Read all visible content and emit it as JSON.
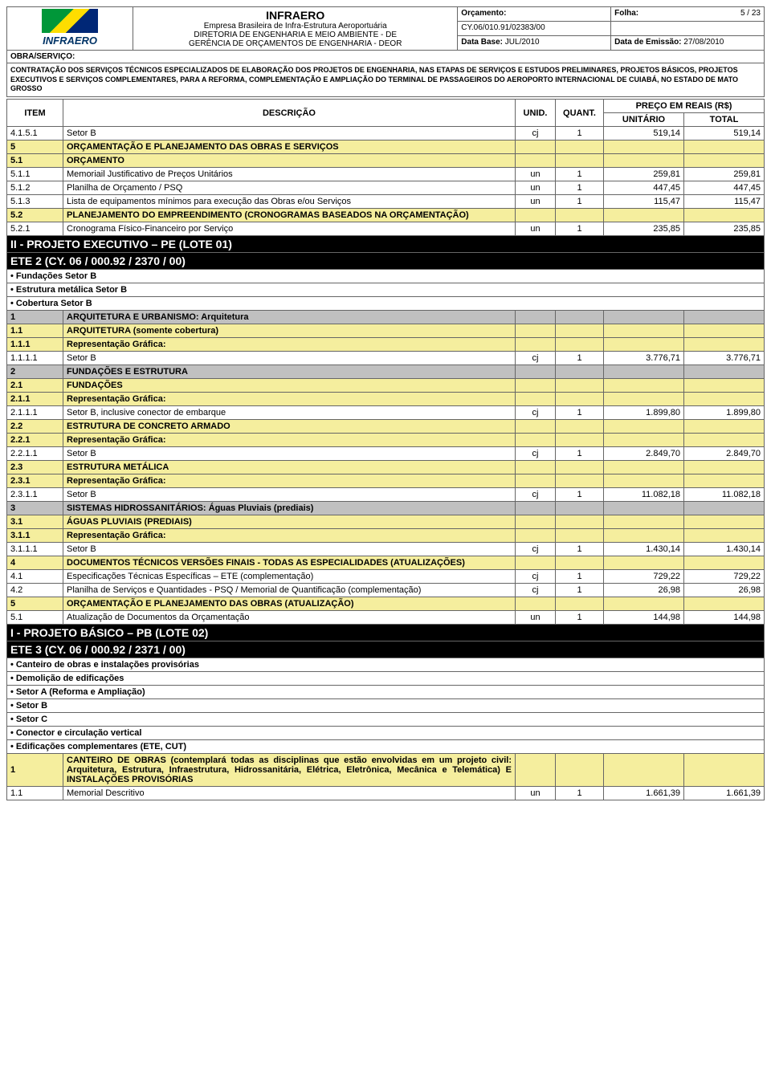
{
  "header": {
    "logo_text": "INFRAERO",
    "company": "INFRAERO",
    "company_sub": "Empresa Brasileira de Infra-Estrutura Aeroportuária",
    "dept1": "DIRETORIA DE ENGENHARIA E MEIO AMBIENTE - DE",
    "dept2": "GERÊNCIA DE ORÇAMENTOS DE ENGENHARIA - DEOR",
    "orcamento_label": "Orçamento:",
    "orcamento_value": "CY.06/010.91/02383/00",
    "folha_label": "Folha:",
    "folha_value": "5 / 23",
    "database_label": "Data Base:",
    "database_value": "JUL/2010",
    "emissao_label": "Data de Emissão:",
    "emissao_value": "27/08/2010",
    "obra_label": "OBRA/SERVIÇO:",
    "obra_desc": "CONTRATAÇÃO DOS SERVIÇOS TÉCNICOS ESPECIALIZADOS DE ELABORAÇÃO DOS PROJETOS DE ENGENHARIA, NAS ETAPAS DE SERVIÇOS E ESTUDOS PRELIMINARES, PROJETOS BÁSICOS, PROJETOS EXECUTIVOS E SERVIÇOS COMPLEMENTARES, PARA A REFORMA, COMPLEMENTAÇÃO E AMPLIAÇÃO DO TERMINAL DE PASSAGEIROS DO AEROPORTO INTERNACIONAL DE CUIABÁ, NO ESTADO DE MATO GROSSO"
  },
  "cols": {
    "item": "ITEM",
    "desc": "DESCRIÇÃO",
    "unid": "UNID.",
    "quant": "QUANT.",
    "preco": "PREÇO EM REAIS (R$)",
    "unit": "UNITÁRIO",
    "total": "TOTAL"
  },
  "rows": [
    {
      "type": "data",
      "item": "4.1.5.1",
      "desc": "Setor B",
      "unid": "cj",
      "quant": "1",
      "unit": "519,14",
      "total": "519,14"
    },
    {
      "type": "yellow",
      "item": "5",
      "desc": "ORÇAMENTAÇÃO E PLANEJAMENTO DAS OBRAS E SERVIÇOS",
      "bold": true
    },
    {
      "type": "yellow",
      "item": "5.1",
      "desc": "ORÇAMENTO",
      "bold": true
    },
    {
      "type": "data",
      "item": "5.1.1",
      "desc": "Memoriail Justificativo de Preços Unitários",
      "unid": "un",
      "quant": "1",
      "unit": "259,81",
      "total": "259,81"
    },
    {
      "type": "data",
      "item": "5.1.2",
      "desc": "Planilha de Orçamento / PSQ",
      "unid": "un",
      "quant": "1",
      "unit": "447,45",
      "total": "447,45"
    },
    {
      "type": "data",
      "item": "5.1.3",
      "desc": "Lista de equipamentos mínimos para execução das Obras e/ou Serviços",
      "unid": "un",
      "quant": "1",
      "unit": "115,47",
      "total": "115,47",
      "justify": true
    },
    {
      "type": "yellow",
      "item": "5.2",
      "desc": "PLANEJAMENTO DO EMPREENDIMENTO (CRONOGRAMAS BASEADOS NA ORÇAMENTAÇÃO)",
      "bold": true,
      "justify": true
    },
    {
      "type": "data",
      "item": "5.2.1",
      "desc": "Cronograma Físico-Financeiro por Serviço",
      "unid": "un",
      "quant": "1",
      "unit": "235,85",
      "total": "235,85"
    },
    {
      "type": "black",
      "desc": "II - PROJETO EXECUTIVO – PE (LOTE 01)"
    },
    {
      "type": "black",
      "desc": "ETE 2 (CY. 06 / 000.92 / 2370 / 00)"
    },
    {
      "type": "bullet",
      "desc": "• Fundações Setor B"
    },
    {
      "type": "bullet",
      "desc": "• Estrutura metálica Setor B"
    },
    {
      "type": "bullet",
      "desc": "• Cobertura Setor B"
    },
    {
      "type": "grey",
      "item": "1",
      "desc": "ARQUITETURA E URBANISMO: Arquitetura"
    },
    {
      "type": "yellow",
      "item": "1.1",
      "desc": "ARQUITETURA (somente cobertura)",
      "bold": true
    },
    {
      "type": "yellow",
      "item": "1.1.1",
      "desc": "Representação Gráfica:",
      "bold": true
    },
    {
      "type": "data",
      "item": "1.1.1.1",
      "desc": "Setor B",
      "unid": "cj",
      "quant": "1",
      "unit": "3.776,71",
      "total": "3.776,71"
    },
    {
      "type": "grey",
      "item": "2",
      "desc": "FUNDAÇÕES E ESTRUTURA"
    },
    {
      "type": "yellow",
      "item": "2.1",
      "desc": "FUNDAÇÕES",
      "bold": true
    },
    {
      "type": "yellow",
      "item": "2.1.1",
      "desc": "Representação Gráfica:",
      "bold": true
    },
    {
      "type": "data",
      "item": "2.1.1.1",
      "desc": "Setor B, inclusive conector de embarque",
      "unid": "cj",
      "quant": "1",
      "unit": "1.899,80",
      "total": "1.899,80"
    },
    {
      "type": "yellow",
      "item": "2.2",
      "desc": "ESTRUTURA DE CONCRETO ARMADO",
      "bold": true
    },
    {
      "type": "yellow",
      "item": "2.2.1",
      "desc": "Representação Gráfica:",
      "bold": true
    },
    {
      "type": "data",
      "item": "2.2.1.1",
      "desc": "Setor B",
      "unid": "cj",
      "quant": "1",
      "unit": "2.849,70",
      "total": "2.849,70"
    },
    {
      "type": "yellow",
      "item": "2.3",
      "desc": "ESTRUTURA METÁLICA",
      "bold": true
    },
    {
      "type": "yellow",
      "item": "2.3.1",
      "desc": "Representação Gráfica:",
      "bold": true
    },
    {
      "type": "data",
      "item": "2.3.1.1",
      "desc": "Setor B",
      "unid": "cj",
      "quant": "1",
      "unit": "11.082,18",
      "total": "11.082,18"
    },
    {
      "type": "grey",
      "item": "3",
      "desc": "SISTEMAS HIDROSSANITÁRIOS: Águas Pluviais (prediais)"
    },
    {
      "type": "yellow",
      "item": "3.1",
      "desc": "ÁGUAS PLUVIAIS (PREDIAIS)",
      "bold": true
    },
    {
      "type": "yellow",
      "item": "3.1.1",
      "desc": "Representação Gráfica:",
      "bold": true
    },
    {
      "type": "data",
      "item": "3.1.1.1",
      "desc": "Setor B",
      "unid": "cj",
      "quant": "1",
      "unit": "1.430,14",
      "total": "1.430,14"
    },
    {
      "type": "yellow",
      "item": "4",
      "desc": "DOCUMENTOS TÉCNICOS VERSÕES FINAIS - TODAS AS ESPECIALIDADES (ATUALIZAÇÕES)",
      "bold": true,
      "justify": true
    },
    {
      "type": "data",
      "item": "4.1",
      "desc": "Especificações Técnicas Específicas – ETE (complementação)",
      "unid": "cj",
      "quant": "1",
      "unit": "729,22",
      "total": "729,22"
    },
    {
      "type": "data",
      "item": "4.2",
      "desc": "Planilha de Serviços e Quantidades - PSQ / Memorial de Quantificação (complementação)",
      "unid": "cj",
      "quant": "1",
      "unit": "26,98",
      "total": "26,98",
      "justify": true
    },
    {
      "type": "yellow",
      "item": "5",
      "desc": "ORÇAMENTAÇÃO E PLANEJAMENTO DAS OBRAS (ATUALIZAÇÃO)",
      "bold": true,
      "justify": true
    },
    {
      "type": "data",
      "item": "5.1",
      "desc": "Atualização de Documentos da Orçamentação",
      "unid": "un",
      "quant": "1",
      "unit": "144,98",
      "total": "144,98"
    },
    {
      "type": "black",
      "desc": "I - PROJETO BÁSICO – PB (LOTE 02)"
    },
    {
      "type": "black",
      "desc": "ETE 3 (CY. 06 / 000.92 / 2371 / 00)"
    },
    {
      "type": "bullet",
      "desc": "• Canteiro de obras e instalações provisórias"
    },
    {
      "type": "bullet",
      "desc": "• Demolição de edificações"
    },
    {
      "type": "bullet",
      "desc": "• Setor A (Reforma e Ampliação)"
    },
    {
      "type": "bullet",
      "desc": "• Setor B"
    },
    {
      "type": "bullet",
      "desc": "• Setor C"
    },
    {
      "type": "bullet",
      "desc": "• Conector e circulação vertical"
    },
    {
      "type": "bullet",
      "desc": "• Edificações complementares (ETE, CUT)"
    },
    {
      "type": "yellow",
      "item": "1",
      "desc": "CANTEIRO DE OBRAS (contemplará todas as disciplinas que estão envolvidas em um projeto civil: Arquitetura, Estrutura, Infraestrutura, Hidrossanitária, Elétrica, Eletrônica, Mecânica e Telemática) E INSTALAÇÕES PROVISÓRIAS",
      "bold": true,
      "justify": true
    },
    {
      "type": "data",
      "item": "1.1",
      "desc": "Memorial Descritivo",
      "unid": "un",
      "quant": "1",
      "unit": "1.661,39",
      "total": "1.661,39"
    }
  ],
  "colors": {
    "yellow": "#f5ee9e",
    "grey": "#c0c0c0",
    "black": "#000000",
    "border": "#666666"
  }
}
